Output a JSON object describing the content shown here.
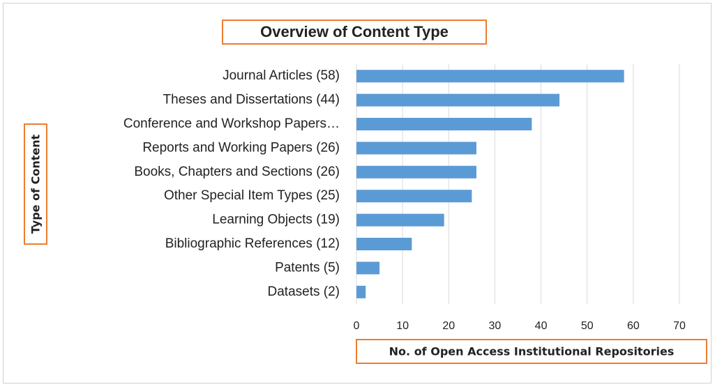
{
  "chart_data": {
    "type": "barh",
    "title": "Overview of Content Type",
    "xlabel": "No. of Open Access Institutional Repositories",
    "ylabel": "Type of Content",
    "categories": [
      "Journal Articles (58)",
      "Theses and Dissertations (44)",
      "Conference and Workshop Papers…",
      "Reports and Working Papers (26)",
      "Books, Chapters and Sections (26)",
      "Other Special Item Types (25)",
      "Learning Objects (19)",
      "Bibliographic References (12)",
      "Patents (5)",
      "Datasets (2)"
    ],
    "values": [
      58,
      44,
      38,
      26,
      26,
      25,
      19,
      12,
      5,
      2
    ],
    "color": "#5b9bd5",
    "xlim": [
      0,
      70
    ],
    "xticks": [
      0,
      10,
      20,
      30,
      40,
      50,
      60,
      70
    ],
    "grid": true
  }
}
